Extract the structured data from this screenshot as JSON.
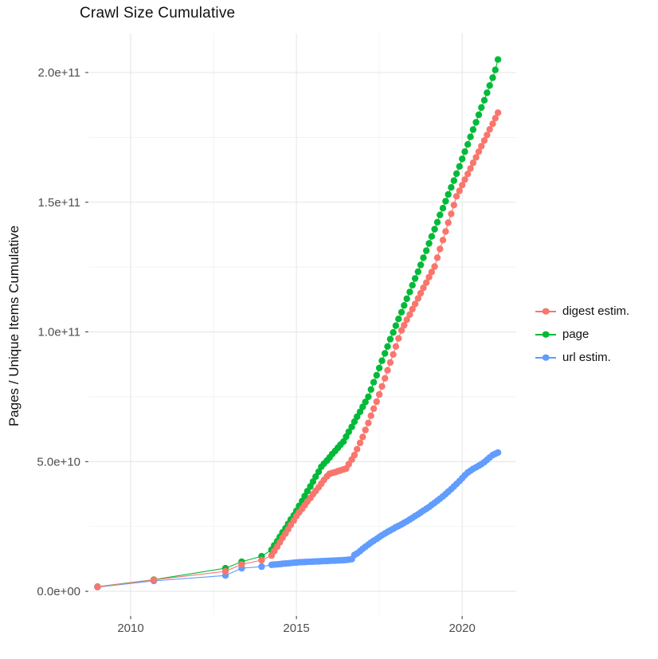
{
  "title": "Crawl Size Cumulative",
  "axes": {
    "y_label": "Pages / Unique Items Cumulative",
    "x_ticks": [
      {
        "label": "2010",
        "value": 2010
      },
      {
        "label": "2015",
        "value": 2015
      },
      {
        "label": "2020",
        "value": 2020
      }
    ],
    "y_ticks": [
      {
        "label": "0.0e+00",
        "value_e9": 0
      },
      {
        "label": "5.0e+10",
        "value_e9": 50
      },
      {
        "label": "1.0e+11",
        "value_e9": 100
      },
      {
        "label": "1.5e+11",
        "value_e9": 150
      },
      {
        "label": "2.0e+11",
        "value_e9": 200
      }
    ]
  },
  "legend": [
    {
      "label": "digest estim.",
      "color": "#F8766D"
    },
    {
      "label": "page",
      "color": "#00BA38"
    },
    {
      "label": "url estim.",
      "color": "#619CFF"
    }
  ],
  "colors": {
    "digest": "#F8766D",
    "page": "#00BA38",
    "url": "#619CFF",
    "grid_major": "#E6E6E6",
    "grid_minor": "#EFEFEF",
    "tick_mark": "#333333",
    "tick_text": "#4D4D4D"
  },
  "chart_data": {
    "type": "scatter",
    "title": "Crawl Size Cumulative",
    "xlabel": "",
    "ylabel": "Pages / Unique Items Cumulative",
    "y_unit": 1000000000,
    "x_range": [
      2008.75,
      2021.63
    ],
    "y_range_e9": [
      -9.2,
      215.05
    ],
    "x_major_gridlines": [
      2010,
      2015,
      2020
    ],
    "x_minor_gridlines": [
      2012.5,
      2017.5
    ],
    "y_major_gridlines_e9": [
      0,
      50,
      100,
      150,
      200
    ],
    "y_minor_gridlines_e9": [
      25,
      75,
      125,
      175
    ],
    "legend_position": "right",
    "grid": true,
    "series": [
      {
        "name": "url estim.",
        "color": "#619CFF",
        "points_year_billion": [
          [
            2009.0,
            1.6
          ],
          [
            2010.7,
            4.0
          ],
          [
            2012.86,
            6.1
          ],
          [
            2013.35,
            8.9
          ],
          [
            2013.95,
            9.5
          ],
          [
            2014.25,
            10.2
          ],
          [
            2014.33,
            10.3
          ],
          [
            2014.42,
            10.4
          ],
          [
            2014.5,
            10.5
          ],
          [
            2014.58,
            10.6
          ],
          [
            2014.67,
            10.7
          ],
          [
            2014.75,
            10.8
          ],
          [
            2014.83,
            10.9
          ],
          [
            2014.92,
            11.0
          ],
          [
            2015.0,
            11.1
          ],
          [
            2015.08,
            11.2
          ],
          [
            2015.17,
            11.25
          ],
          [
            2015.25,
            11.3
          ],
          [
            2015.33,
            11.35
          ],
          [
            2015.42,
            11.4
          ],
          [
            2015.5,
            11.45
          ],
          [
            2015.58,
            11.5
          ],
          [
            2015.67,
            11.55
          ],
          [
            2015.75,
            11.6
          ],
          [
            2015.83,
            11.65
          ],
          [
            2015.92,
            11.7
          ],
          [
            2016.0,
            11.75
          ],
          [
            2016.08,
            11.8
          ],
          [
            2016.17,
            11.85
          ],
          [
            2016.25,
            11.9
          ],
          [
            2016.33,
            11.95
          ],
          [
            2016.42,
            12.0
          ],
          [
            2016.5,
            12.1
          ],
          [
            2016.58,
            12.2
          ],
          [
            2016.67,
            12.4
          ],
          [
            2016.75,
            14.0
          ],
          [
            2016.83,
            14.6
          ],
          [
            2016.92,
            15.5
          ],
          [
            2017.0,
            16.4
          ],
          [
            2017.08,
            17.2
          ],
          [
            2017.17,
            18.0
          ],
          [
            2017.25,
            18.8
          ],
          [
            2017.33,
            19.5
          ],
          [
            2017.42,
            20.2
          ],
          [
            2017.5,
            20.9
          ],
          [
            2017.58,
            21.6
          ],
          [
            2017.67,
            22.3
          ],
          [
            2017.75,
            22.9
          ],
          [
            2017.83,
            23.5
          ],
          [
            2017.92,
            24.1
          ],
          [
            2018.0,
            24.7
          ],
          [
            2018.08,
            25.2
          ],
          [
            2018.17,
            25.8
          ],
          [
            2018.25,
            26.4
          ],
          [
            2018.33,
            27.0
          ],
          [
            2018.42,
            27.7
          ],
          [
            2018.5,
            28.3
          ],
          [
            2018.58,
            29.0
          ],
          [
            2018.67,
            29.7
          ],
          [
            2018.75,
            30.4
          ],
          [
            2018.83,
            31.1
          ],
          [
            2018.92,
            31.8
          ],
          [
            2019.0,
            32.5
          ],
          [
            2019.08,
            33.3
          ],
          [
            2019.17,
            34.1
          ],
          [
            2019.25,
            34.9
          ],
          [
            2019.33,
            35.7
          ],
          [
            2019.42,
            36.6
          ],
          [
            2019.5,
            37.5
          ],
          [
            2019.58,
            38.4
          ],
          [
            2019.67,
            39.4
          ],
          [
            2019.75,
            40.4
          ],
          [
            2019.83,
            41.4
          ],
          [
            2019.92,
            42.5
          ],
          [
            2020.0,
            43.6
          ],
          [
            2020.08,
            44.7
          ],
          [
            2020.17,
            45.8
          ],
          [
            2020.25,
            46.5
          ],
          [
            2020.33,
            47.2
          ],
          [
            2020.42,
            47.8
          ],
          [
            2020.5,
            48.4
          ],
          [
            2020.58,
            49.0
          ],
          [
            2020.67,
            49.8
          ],
          [
            2020.75,
            50.7
          ],
          [
            2020.83,
            51.6
          ],
          [
            2020.92,
            52.5
          ],
          [
            2021.0,
            53.0
          ],
          [
            2021.08,
            53.5
          ]
        ]
      },
      {
        "name": "page",
        "color": "#00BA38",
        "points_year_billion": [
          [
            2009.0,
            1.8
          ],
          [
            2010.7,
            4.5
          ],
          [
            2012.86,
            8.9
          ],
          [
            2013.35,
            11.4
          ],
          [
            2013.95,
            13.5
          ],
          [
            2014.25,
            16.0
          ],
          [
            2014.33,
            17.7
          ],
          [
            2014.42,
            19.3
          ],
          [
            2014.5,
            21.0
          ],
          [
            2014.58,
            22.7
          ],
          [
            2014.67,
            24.3
          ],
          [
            2014.75,
            26.0
          ],
          [
            2014.83,
            27.7
          ],
          [
            2014.92,
            29.3
          ],
          [
            2015.0,
            31.0
          ],
          [
            2015.08,
            32.9
          ],
          [
            2015.17,
            34.8
          ],
          [
            2015.25,
            36.7
          ],
          [
            2015.33,
            38.6
          ],
          [
            2015.42,
            40.4
          ],
          [
            2015.5,
            42.3
          ],
          [
            2015.58,
            44.2
          ],
          [
            2015.67,
            46.1
          ],
          [
            2015.75,
            48.0
          ],
          [
            2015.83,
            49.2
          ],
          [
            2015.92,
            50.4
          ],
          [
            2016.0,
            51.6
          ],
          [
            2016.08,
            52.9
          ],
          [
            2016.17,
            54.1
          ],
          [
            2016.25,
            55.3
          ],
          [
            2016.33,
            56.5
          ],
          [
            2016.42,
            57.7
          ],
          [
            2016.5,
            59.6
          ],
          [
            2016.58,
            61.5
          ],
          [
            2016.67,
            63.4
          ],
          [
            2016.75,
            65.4
          ],
          [
            2016.83,
            67.3
          ],
          [
            2016.92,
            69.2
          ],
          [
            2017.0,
            71.1
          ],
          [
            2017.08,
            73.0
          ],
          [
            2017.17,
            75.0
          ],
          [
            2017.25,
            77.8
          ],
          [
            2017.33,
            80.6
          ],
          [
            2017.42,
            83.3
          ],
          [
            2017.5,
            86.1
          ],
          [
            2017.58,
            88.9
          ],
          [
            2017.67,
            91.7
          ],
          [
            2017.75,
            94.4
          ],
          [
            2017.83,
            97.2
          ],
          [
            2017.92,
            99.8
          ],
          [
            2018.0,
            102.4
          ],
          [
            2018.08,
            105.0
          ],
          [
            2018.17,
            107.6
          ],
          [
            2018.25,
            110.2
          ],
          [
            2018.33,
            112.8
          ],
          [
            2018.42,
            115.4
          ],
          [
            2018.5,
            118.0
          ],
          [
            2018.58,
            120.6
          ],
          [
            2018.67,
            123.2
          ],
          [
            2018.75,
            125.8
          ],
          [
            2018.83,
            128.6
          ],
          [
            2018.92,
            131.3
          ],
          [
            2019.0,
            134.1
          ],
          [
            2019.08,
            136.8
          ],
          [
            2019.17,
            139.6
          ],
          [
            2019.25,
            142.3
          ],
          [
            2019.33,
            145.1
          ],
          [
            2019.42,
            147.7
          ],
          [
            2019.5,
            150.4
          ],
          [
            2019.58,
            153.0
          ],
          [
            2019.67,
            155.7
          ],
          [
            2019.75,
            158.3
          ],
          [
            2019.83,
            161.0
          ],
          [
            2019.92,
            163.8
          ],
          [
            2020.0,
            166.7
          ],
          [
            2020.08,
            169.5
          ],
          [
            2020.17,
            172.3
          ],
          [
            2020.25,
            175.2
          ],
          [
            2020.33,
            178.0
          ],
          [
            2020.42,
            180.8
          ],
          [
            2020.5,
            183.7
          ],
          [
            2020.58,
            186.5
          ],
          [
            2020.67,
            189.3
          ],
          [
            2020.75,
            192.2
          ],
          [
            2020.83,
            195.0
          ],
          [
            2020.92,
            198.0
          ],
          [
            2021.0,
            201.0
          ],
          [
            2021.08,
            205.0
          ]
        ]
      },
      {
        "name": "digest estim.",
        "color": "#F8766D",
        "points_year_billion": [
          [
            2009.0,
            1.7
          ],
          [
            2010.7,
            4.4
          ],
          [
            2012.86,
            7.7
          ],
          [
            2013.35,
            10.4
          ],
          [
            2013.95,
            12.0
          ],
          [
            2014.25,
            13.8
          ],
          [
            2014.33,
            15.5
          ],
          [
            2014.42,
            17.2
          ],
          [
            2014.5,
            18.9
          ],
          [
            2014.58,
            20.6
          ],
          [
            2014.67,
            22.3
          ],
          [
            2014.75,
            23.9
          ],
          [
            2014.83,
            25.6
          ],
          [
            2014.92,
            27.3
          ],
          [
            2015.0,
            29.0
          ],
          [
            2015.08,
            30.4
          ],
          [
            2015.17,
            31.8
          ],
          [
            2015.25,
            33.2
          ],
          [
            2015.33,
            34.6
          ],
          [
            2015.42,
            36.0
          ],
          [
            2015.5,
            37.4
          ],
          [
            2015.58,
            38.7
          ],
          [
            2015.67,
            40.1
          ],
          [
            2015.75,
            41.5
          ],
          [
            2015.83,
            42.9
          ],
          [
            2015.92,
            44.3
          ],
          [
            2016.0,
            45.3
          ],
          [
            2016.08,
            45.6
          ],
          [
            2016.17,
            45.9
          ],
          [
            2016.25,
            46.3
          ],
          [
            2016.33,
            46.6
          ],
          [
            2016.42,
            47.0
          ],
          [
            2016.5,
            47.3
          ],
          [
            2016.58,
            49.0
          ],
          [
            2016.67,
            50.8
          ],
          [
            2016.75,
            52.5
          ],
          [
            2016.83,
            54.8
          ],
          [
            2016.92,
            57.2
          ],
          [
            2017.0,
            59.5
          ],
          [
            2017.08,
            62.2
          ],
          [
            2017.17,
            64.9
          ],
          [
            2017.25,
            67.7
          ],
          [
            2017.33,
            70.4
          ],
          [
            2017.42,
            73.1
          ],
          [
            2017.5,
            75.9
          ],
          [
            2017.58,
            79.0
          ],
          [
            2017.67,
            82.1
          ],
          [
            2017.75,
            85.2
          ],
          [
            2017.83,
            88.2
          ],
          [
            2017.92,
            91.3
          ],
          [
            2018.0,
            94.4
          ],
          [
            2018.08,
            97.5
          ],
          [
            2018.17,
            100.6
          ],
          [
            2018.25,
            102.6
          ],
          [
            2018.33,
            104.7
          ],
          [
            2018.42,
            106.7
          ],
          [
            2018.5,
            108.8
          ],
          [
            2018.58,
            110.8
          ],
          [
            2018.67,
            112.9
          ],
          [
            2018.75,
            114.9
          ],
          [
            2018.83,
            117.0
          ],
          [
            2018.92,
            119.0
          ],
          [
            2019.0,
            121.1
          ],
          [
            2019.08,
            123.1
          ],
          [
            2019.17,
            125.2
          ],
          [
            2019.25,
            128.6
          ],
          [
            2019.33,
            132.0
          ],
          [
            2019.42,
            135.4
          ],
          [
            2019.5,
            138.7
          ],
          [
            2019.58,
            142.1
          ],
          [
            2019.67,
            145.5
          ],
          [
            2019.75,
            148.9
          ],
          [
            2019.83,
            152.3
          ],
          [
            2019.92,
            154.4
          ],
          [
            2020.0,
            156.6
          ],
          [
            2020.08,
            158.7
          ],
          [
            2020.17,
            160.9
          ],
          [
            2020.25,
            163.0
          ],
          [
            2020.33,
            165.2
          ],
          [
            2020.42,
            167.3
          ],
          [
            2020.5,
            169.5
          ],
          [
            2020.58,
            171.6
          ],
          [
            2020.67,
            173.8
          ],
          [
            2020.75,
            175.9
          ],
          [
            2020.83,
            178.1
          ],
          [
            2020.92,
            180.2
          ],
          [
            2021.0,
            182.4
          ],
          [
            2021.08,
            184.5
          ]
        ]
      }
    ]
  }
}
